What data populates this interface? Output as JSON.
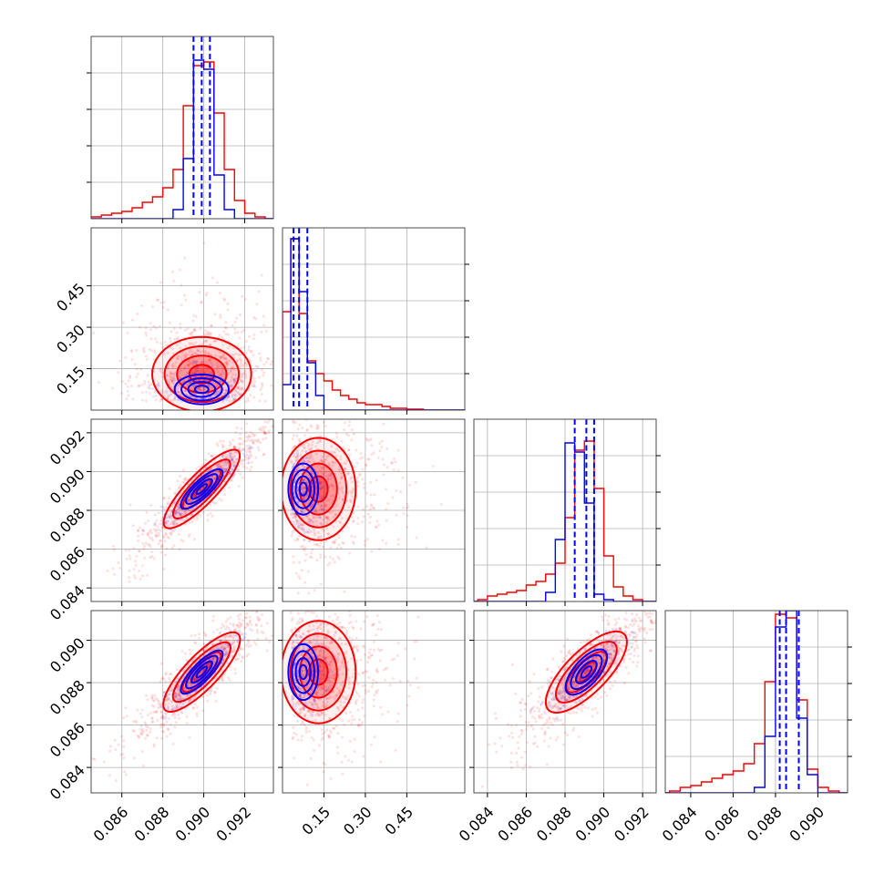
{
  "chart_data": {
    "type": "corner",
    "grid": true,
    "n_params": 4,
    "colors": {
      "series_a": "#0000ff",
      "series_b": "#ff0000"
    },
    "axes": [
      {
        "range": [
          0.0845,
          0.0934
        ],
        "ticks": [
          0.086,
          0.088,
          0.09,
          0.092
        ],
        "tick_labels": [
          "0.086",
          "0.088",
          "0.090",
          "0.092"
        ]
      },
      {
        "range": [
          0.0,
          0.66
        ],
        "ticks": [
          0.15,
          0.3,
          0.45
        ],
        "tick_labels": [
          "0.15",
          "0.30",
          "0.45"
        ]
      },
      {
        "range": [
          0.0833,
          0.0927
        ],
        "ticks": [
          0.084,
          0.086,
          0.088,
          0.09,
          0.092
        ],
        "tick_labels": [
          "0.084",
          "0.086",
          "0.088",
          "0.090",
          "0.092"
        ]
      },
      {
        "range": [
          0.0828,
          0.0914
        ],
        "ticks": [
          0.084,
          0.086,
          0.088,
          0.09
        ],
        "tick_labels": [
          "0.084",
          "0.086",
          "0.088",
          "0.090"
        ]
      }
    ],
    "series": [
      {
        "color": "#0000ff",
        "means": [
          0.0899,
          0.075,
          0.0891,
          0.0885
        ],
        "stds": [
          0.0006,
          0.03,
          0.0006,
          0.0006
        ],
        "corr": [
          [
            1,
            0,
            0.9,
            0.9
          ],
          [
            0,
            1,
            0,
            0
          ],
          [
            0.9,
            0,
            1,
            0.8
          ],
          [
            0.9,
            0,
            0.8,
            1
          ]
        ],
        "quantiles": [
          [
            0.0895,
            0.0899,
            0.0903
          ],
          [
            0.04,
            0.06,
            0.09
          ],
          [
            0.0885,
            0.0891,
            0.0895
          ],
          [
            0.0882,
            0.0885,
            0.0891
          ]
        ],
        "hists": [
          {
            "edges": [
              0.0885,
              0.089,
              0.0895,
              0.09,
              0.0905,
              0.091,
              0.0915
            ],
            "counts": [
              0.05,
              0.33,
              0.87,
              0.82,
              0.24,
              0.05
            ]
          },
          {
            "edges": [
              0.0,
              0.03,
              0.06,
              0.09,
              0.12,
              0.15
            ],
            "counts": [
              0.14,
              0.94,
              0.65,
              0.26,
              0.08
            ]
          },
          {
            "edges": [
              0.087,
              0.0875,
              0.088,
              0.0885,
              0.089,
              0.0895,
              0.09,
              0.0905
            ],
            "counts": [
              0.05,
              0.34,
              0.87,
              0.82,
              0.54,
              0.04,
              0.01
            ]
          },
          {
            "edges": [
              0.087,
              0.0875,
              0.088,
              0.0885,
              0.089,
              0.0895,
              0.09
            ],
            "counts": [
              0.03,
              0.31,
              0.91,
              1.0,
              0.41,
              0.1
            ]
          }
        ]
      },
      {
        "color": "#ff0000",
        "means": [
          0.0899,
          0.13,
          0.0891,
          0.0885
        ],
        "stds": [
          0.0011,
          0.075,
          0.0012,
          0.0011
        ],
        "corr": [
          [
            1,
            0,
            0.92,
            0.9
          ],
          [
            0,
            1,
            0,
            0
          ],
          [
            0.92,
            0,
            1,
            0.85
          ],
          [
            0.9,
            0,
            0.85,
            1
          ]
        ],
        "hists": [
          {
            "edges": [
              0.0845,
              0.085,
              0.0855,
              0.086,
              0.0865,
              0.087,
              0.0875,
              0.088,
              0.0885,
              0.089,
              0.0895,
              0.09,
              0.0905,
              0.091,
              0.0915,
              0.092,
              0.0925,
              0.093
            ],
            "counts": [
              0.01,
              0.02,
              0.03,
              0.04,
              0.06,
              0.09,
              0.12,
              0.17,
              0.27,
              0.62,
              0.84,
              0.86,
              0.58,
              0.27,
              0.1,
              0.03,
              0.01
            ]
          },
          {
            "edges": [
              0.0,
              0.03,
              0.06,
              0.09,
              0.12,
              0.15,
              0.18,
              0.21,
              0.24,
              0.27,
              0.3,
              0.33,
              0.36,
              0.39,
              0.42,
              0.45,
              0.48,
              0.51
            ],
            "counts": [
              0.54,
              0.94,
              0.53,
              0.27,
              0.2,
              0.16,
              0.11,
              0.08,
              0.06,
              0.04,
              0.03,
              0.03,
              0.02,
              0.01,
              0.01,
              0.005,
              0.005
            ]
          },
          {
            "edges": [
              0.0835,
              0.084,
              0.0845,
              0.085,
              0.0855,
              0.086,
              0.0865,
              0.087,
              0.0875,
              0.088,
              0.0885,
              0.089,
              0.0895,
              0.09,
              0.0905,
              0.091,
              0.0915,
              0.092
            ],
            "counts": [
              0.01,
              0.03,
              0.04,
              0.05,
              0.06,
              0.09,
              0.11,
              0.15,
              0.21,
              0.46,
              0.83,
              0.88,
              0.62,
              0.25,
              0.08,
              0.03,
              0.01
            ]
          },
          {
            "edges": [
              0.083,
              0.0835,
              0.084,
              0.0845,
              0.085,
              0.0855,
              0.086,
              0.0865,
              0.087,
              0.0875,
              0.088,
              0.0885,
              0.089,
              0.0895,
              0.09,
              0.0905,
              0.091
            ],
            "counts": [
              0.01,
              0.03,
              0.04,
              0.06,
              0.08,
              0.1,
              0.12,
              0.16,
              0.27,
              0.61,
              0.98,
              0.96,
              0.51,
              0.13,
              0.03,
              0.01
            ]
          }
        ]
      }
    ]
  }
}
